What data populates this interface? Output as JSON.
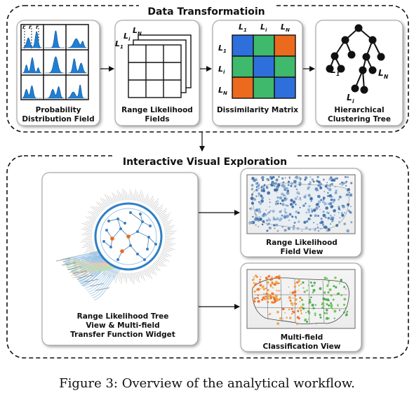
{
  "sections": {
    "transformation": {
      "title": "Data Transformatioin"
    },
    "exploration": {
      "title": "Interactive Visual Exploration"
    }
  },
  "cards": {
    "pdf": {
      "line1": "Probability",
      "line2": "Distribution Field",
      "r_labels": [
        "r",
        "r",
        "r"
      ]
    },
    "range_fields": {
      "line1": "Range Likelihood",
      "line2": "Fields",
      "l_labels": [
        "L",
        "L",
        "L"
      ],
      "l_subs": [
        "N",
        "i",
        "1"
      ]
    },
    "dissimilarity": {
      "line1": "Dissimilarity Matrix",
      "col_labels": [
        "L",
        "L",
        "L"
      ],
      "row_labels": [
        "L",
        "L",
        "L"
      ],
      "subs": [
        "1",
        "i",
        "N"
      ]
    },
    "tree": {
      "line1": "Hierarchical",
      "line2": "Clustering Tree",
      "node_labels": [
        "L",
        "L",
        "L"
      ],
      "subs": [
        "1",
        "N",
        "i"
      ]
    },
    "tree_view": {
      "line1": "Range Likelihood Tree",
      "line2": "View & Multi-field",
      "line3": "Transfer Function Widget"
    },
    "field_view": {
      "line1": "Range Likelihood",
      "line2": "Field View"
    },
    "class_view": {
      "line1": "Multi-field",
      "line2": "Classification View"
    }
  },
  "matrix": {
    "cells": [
      [
        "#2f6fdc",
        "#3fb96b",
        "#ec6a1e"
      ],
      [
        "#3fb96b",
        "#2f6fdc",
        "#3fb96b"
      ],
      [
        "#ec6a1e",
        "#3fb96b",
        "#2f6fdc"
      ]
    ]
  },
  "colors": {
    "blue": "#2f6fdc",
    "green": "#3fb96b",
    "orange": "#ec6a1e",
    "dist": "#1f7fd4"
  },
  "caption": "Figure 3: Overview of the analytical workflow."
}
